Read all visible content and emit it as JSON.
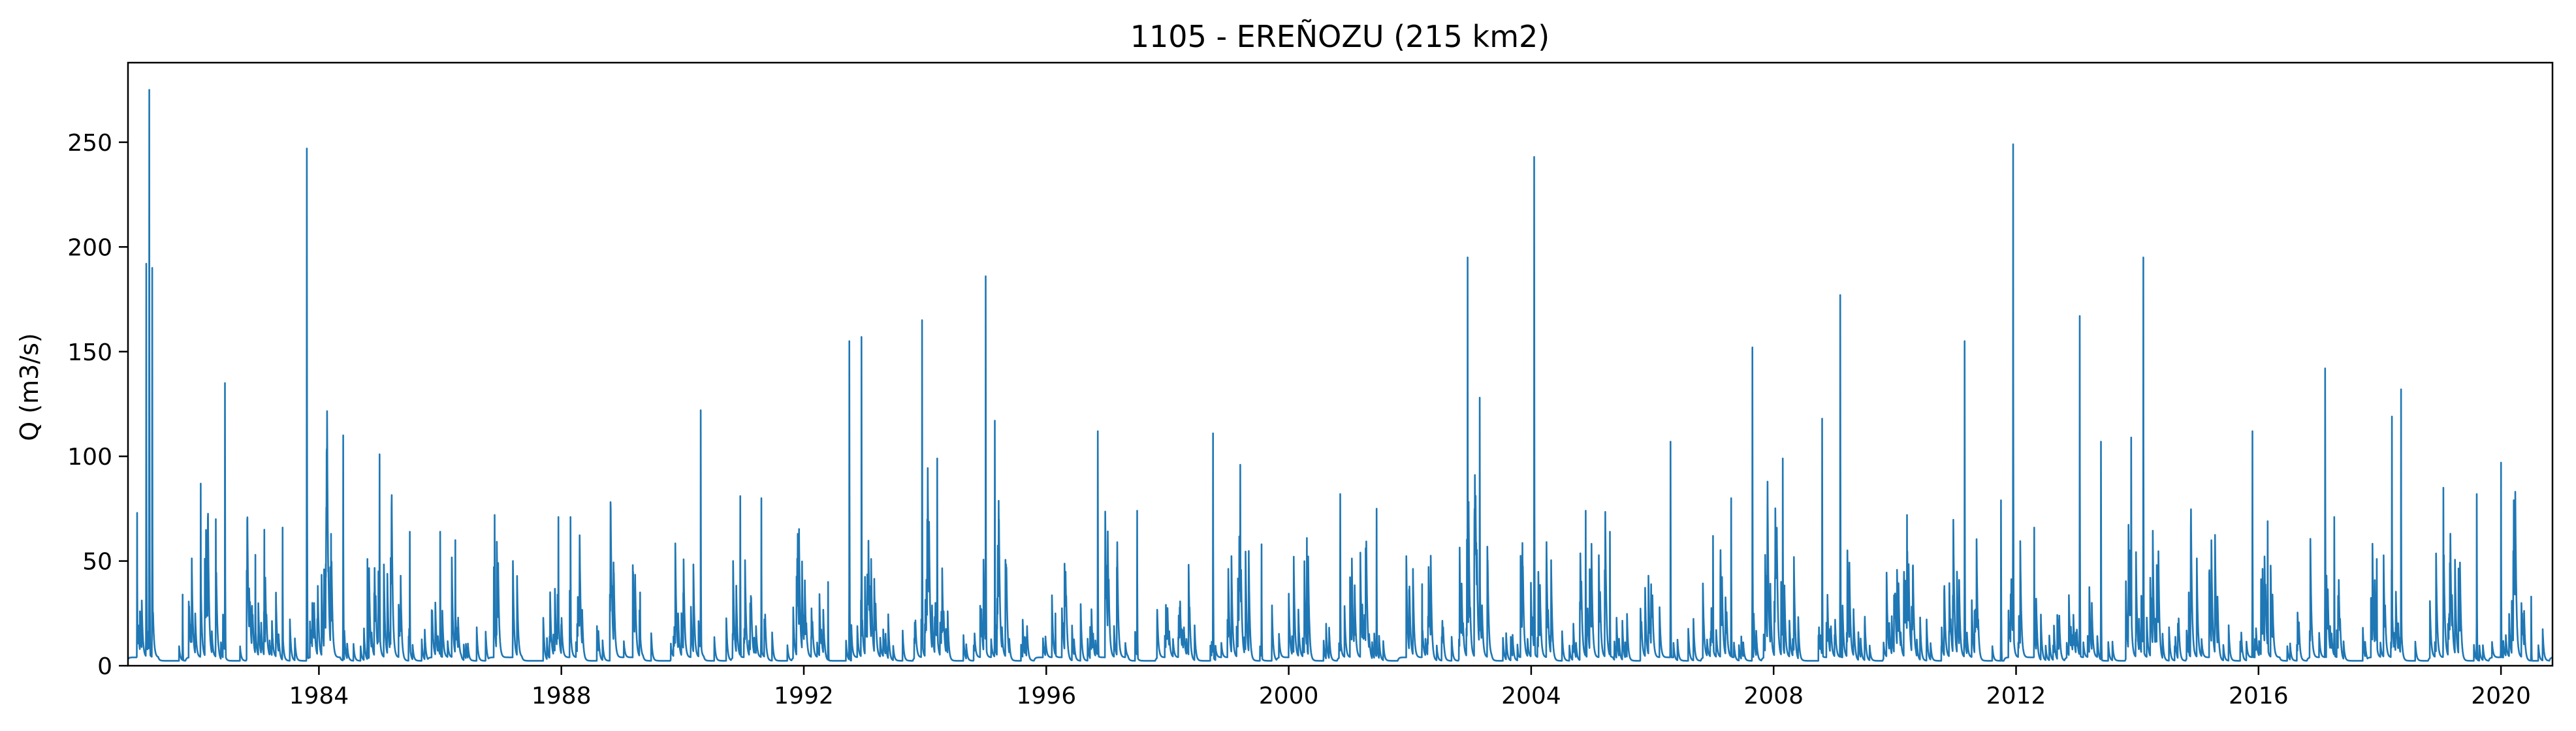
{
  "chart_data": {
    "type": "line",
    "title": "1105 - EREÑOZU (215 km2)",
    "xlabel": "",
    "ylabel": "Q (m3/s)",
    "xlim": [
      1980.85,
      2020.85
    ],
    "ylim": [
      0,
      288
    ],
    "grid": false,
    "legend": "none",
    "x_ticks": [
      1984,
      1988,
      1992,
      1996,
      2000,
      2004,
      2008,
      2012,
      2016,
      2020
    ],
    "y_ticks": [
      0,
      50,
      100,
      150,
      200,
      250
    ],
    "series": [
      {
        "color": "#1f77b4",
        "approximate_peaks": [
          {
            "x": 1981.0,
            "y": 73
          },
          {
            "x": 1981.15,
            "y": 192
          },
          {
            "x": 1981.2,
            "y": 275
          },
          {
            "x": 1981.25,
            "y": 190
          },
          {
            "x": 1981.75,
            "y": 34
          },
          {
            "x": 1982.05,
            "y": 87
          },
          {
            "x": 1982.3,
            "y": 70
          },
          {
            "x": 1982.45,
            "y": 135
          },
          {
            "x": 1982.95,
            "y": 53
          },
          {
            "x": 1983.1,
            "y": 65
          },
          {
            "x": 1983.4,
            "y": 66
          },
          {
            "x": 1983.8,
            "y": 247
          },
          {
            "x": 1984.2,
            "y": 63
          },
          {
            "x": 1984.4,
            "y": 110
          },
          {
            "x": 1984.8,
            "y": 51
          },
          {
            "x": 1985.0,
            "y": 101
          },
          {
            "x": 1985.5,
            "y": 64
          },
          {
            "x": 1986.0,
            "y": 64
          },
          {
            "x": 1986.25,
            "y": 60
          },
          {
            "x": 1986.9,
            "y": 72
          },
          {
            "x": 1987.2,
            "y": 50
          },
          {
            "x": 1987.95,
            "y": 71
          },
          {
            "x": 1988.15,
            "y": 71
          },
          {
            "x": 1989.3,
            "y": 35
          },
          {
            "x": 1990.3,
            "y": 122
          },
          {
            "x": 1990.95,
            "y": 81
          },
          {
            "x": 1991.3,
            "y": 80
          },
          {
            "x": 1991.9,
            "y": 63
          },
          {
            "x": 1992.4,
            "y": 40
          },
          {
            "x": 1992.75,
            "y": 155
          },
          {
            "x": 1992.95,
            "y": 157
          },
          {
            "x": 1993.95,
            "y": 165
          },
          {
            "x": 1994.2,
            "y": 99
          },
          {
            "x": 1995.0,
            "y": 186
          },
          {
            "x": 1995.15,
            "y": 117
          },
          {
            "x": 1996.15,
            "y": 25
          },
          {
            "x": 1996.85,
            "y": 112
          },
          {
            "x": 1997.5,
            "y": 74
          },
          {
            "x": 1998.75,
            "y": 111
          },
          {
            "x": 1999.2,
            "y": 96
          },
          {
            "x": 1999.55,
            "y": 58
          },
          {
            "x": 2000.3,
            "y": 61
          },
          {
            "x": 2000.85,
            "y": 82
          },
          {
            "x": 2001.45,
            "y": 75
          },
          {
            "x": 2002.2,
            "y": 39
          },
          {
            "x": 2002.95,
            "y": 195
          },
          {
            "x": 2003.15,
            "y": 128
          },
          {
            "x": 2004.05,
            "y": 243
          },
          {
            "x": 2004.9,
            "y": 74
          },
          {
            "x": 2005.3,
            "y": 64
          },
          {
            "x": 2006.3,
            "y": 107
          },
          {
            "x": 2007.0,
            "y": 62
          },
          {
            "x": 2007.3,
            "y": 80
          },
          {
            "x": 2007.65,
            "y": 152
          },
          {
            "x": 2008.15,
            "y": 99
          },
          {
            "x": 2008.8,
            "y": 118
          },
          {
            "x": 2009.1,
            "y": 177
          },
          {
            "x": 2010.2,
            "y": 72
          },
          {
            "x": 2011.15,
            "y": 155
          },
          {
            "x": 2011.75,
            "y": 79
          },
          {
            "x": 2011.95,
            "y": 249
          },
          {
            "x": 2012.3,
            "y": 66
          },
          {
            "x": 2013.05,
            "y": 167
          },
          {
            "x": 2013.4,
            "y": 107
          },
          {
            "x": 2013.9,
            "y": 109
          },
          {
            "x": 2014.1,
            "y": 195
          },
          {
            "x": 2014.85,
            "y": 35
          },
          {
            "x": 2015.9,
            "y": 112
          },
          {
            "x": 2016.15,
            "y": 69
          },
          {
            "x": 2017.1,
            "y": 142
          },
          {
            "x": 2017.25,
            "y": 71
          },
          {
            "x": 2017.95,
            "y": 51
          },
          {
            "x": 2018.2,
            "y": 119
          },
          {
            "x": 2018.35,
            "y": 132
          },
          {
            "x": 2019.05,
            "y": 85
          },
          {
            "x": 2019.6,
            "y": 82
          },
          {
            "x": 2020.0,
            "y": 97
          },
          {
            "x": 2020.5,
            "y": 33
          }
        ]
      }
    ]
  }
}
